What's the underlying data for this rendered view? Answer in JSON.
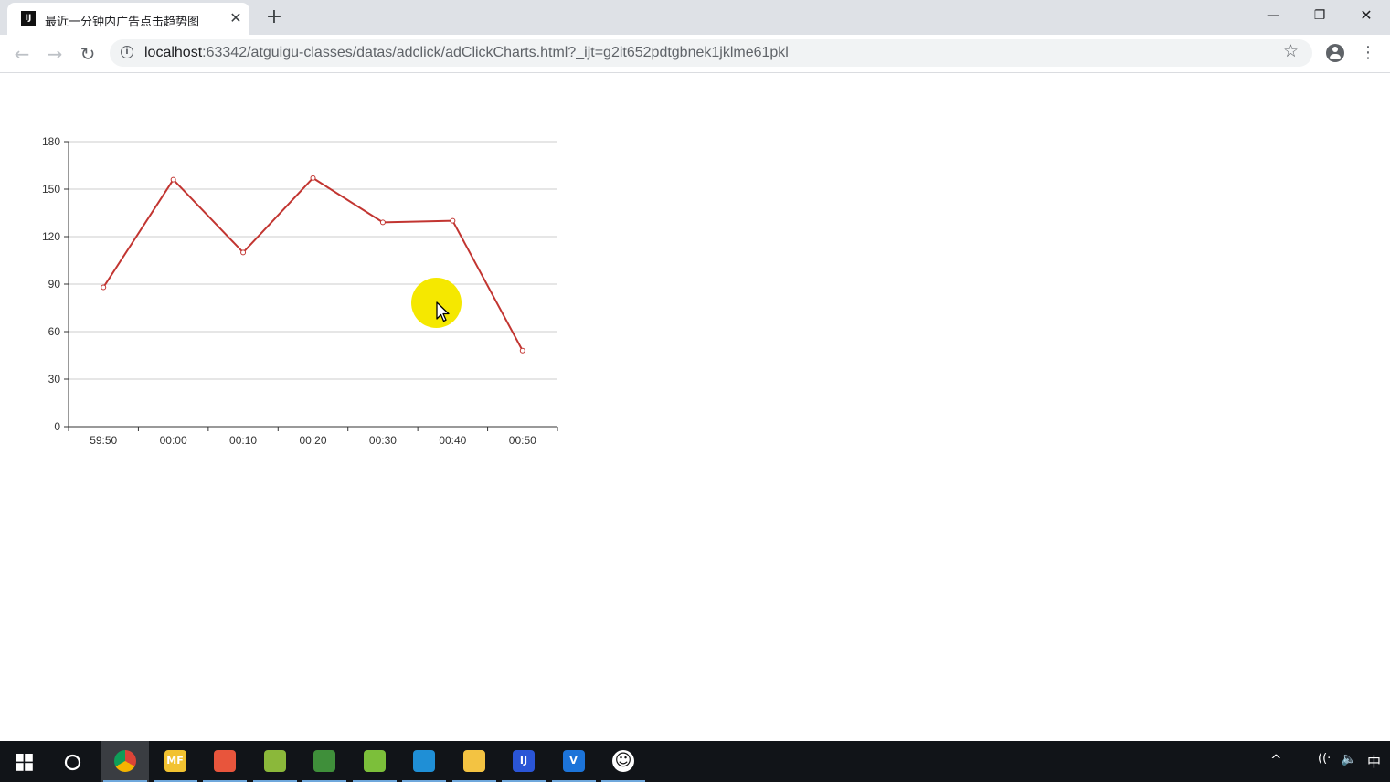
{
  "browser": {
    "tab_title": "最近一分钟内广告点击趋势图",
    "favicon_text": "IJ",
    "url_host": "localhost",
    "url_rest": ":63342/atguigu-classes/datas/adclick/adClickCharts.html?_ijt=g2it652pdtgbnek1jklme61pkl",
    "tab_close": "✕",
    "new_tab": "+",
    "back": "←",
    "forward": "→",
    "reload": "↻",
    "star": "☆",
    "menu": "⋮",
    "minimize": "—",
    "restore": "❐",
    "close": "✕"
  },
  "chart_data": {
    "type": "line",
    "categories": [
      "59:50",
      "00:00",
      "00:10",
      "00:20",
      "00:30",
      "00:40",
      "00:50"
    ],
    "series": [
      {
        "values": [
          88,
          156,
          110,
          157,
          129,
          130,
          48
        ],
        "color": "#c23531"
      }
    ],
    "ylim": [
      0,
      180
    ],
    "yticks": [
      0,
      30,
      60,
      90,
      120,
      150,
      180
    ],
    "grid": true,
    "title": "",
    "xlabel": "",
    "ylabel": ""
  },
  "taskbar": {
    "items": [
      {
        "name": "chrome-icon",
        "color": "#db4437",
        "text": ""
      },
      {
        "name": "mf-icon",
        "color": "#f2c230",
        "text": "MF"
      },
      {
        "name": "app-red-icon",
        "color": "#e8553c",
        "text": ""
      },
      {
        "name": "app-green-icon",
        "color": "#8bb83a",
        "text": ""
      },
      {
        "name": "app-figure-icon",
        "color": "#3f8f3a",
        "text": ""
      },
      {
        "name": "notepad-icon",
        "color": "#7cbf3a",
        "text": ""
      },
      {
        "name": "virtualbox-icon",
        "color": "#1f8fd6",
        "text": ""
      },
      {
        "name": "file-explorer-icon",
        "color": "#f3c342",
        "text": ""
      },
      {
        "name": "intellij-icon",
        "color": "#2a55d6",
        "text": "IJ"
      },
      {
        "name": "vm-icon",
        "color": "#1c74d9",
        "text": "V"
      },
      {
        "name": "smiley-icon",
        "color": "#ffffff",
        "text": "☺"
      }
    ],
    "tray_chevron": "^",
    "tray_network": "((·",
    "tray_volume": "🔈",
    "tray_ime": "中"
  }
}
